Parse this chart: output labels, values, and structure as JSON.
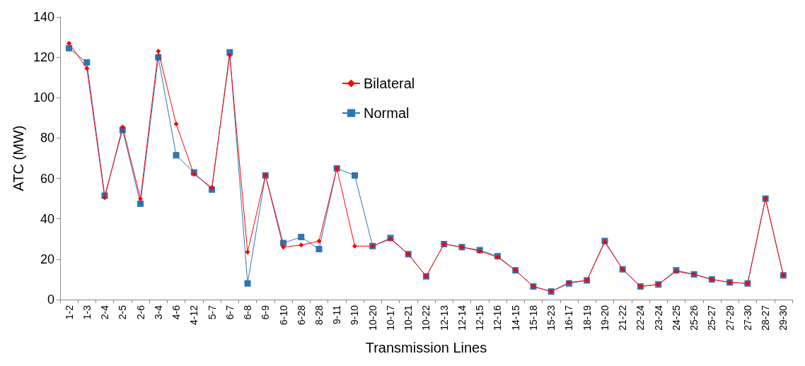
{
  "chart_data": {
    "type": "line",
    "xlabel": "Transmission Lines",
    "ylabel": "ATC (MW)",
    "categories": [
      "1-2",
      "1-3",
      "2-4",
      "2-5",
      "2-6",
      "3-4",
      "4-6",
      "4-12",
      "5-7",
      "6-7",
      "6-8",
      "6-9",
      "6-10",
      "6-28",
      "8-28",
      "9-11",
      "9-10",
      "10-20",
      "10-17",
      "10-21",
      "10-22",
      "12-13",
      "12-14",
      "12-15",
      "12-16",
      "14-15",
      "15-18",
      "15-23",
      "16-17",
      "18-19",
      "19-20",
      "21-22",
      "22-24",
      "23-24",
      "24-25",
      "25-26",
      "25-27",
      "27-29",
      "27-30",
      "28-27",
      "29-30"
    ],
    "series": [
      {
        "name": "Bilateral",
        "color": "#ff0000",
        "marker": "diamond",
        "values": [
          127,
          114.5,
          50.5,
          85.5,
          50,
          123,
          87,
          62,
          55.5,
          121,
          23.5,
          61.5,
          26,
          27,
          29,
          65,
          26.5,
          26.5,
          30,
          22.5,
          11.5,
          27.5,
          26,
          24,
          21,
          14.5,
          6.5,
          4,
          8.5,
          9.5,
          28.5,
          15,
          6.5,
          7.5,
          14,
          12.5,
          10,
          8.5,
          8,
          50,
          12
        ]
      },
      {
        "name": "Normal",
        "color": "#2e75b6",
        "marker": "square",
        "values": [
          124.5,
          117.5,
          51.5,
          84,
          47.5,
          120,
          71.5,
          63,
          54.5,
          122.5,
          8,
          61.5,
          28,
          31,
          25,
          65,
          61.5,
          26.5,
          30.5,
          22.5,
          11.5,
          27.5,
          26,
          24.5,
          21.5,
          14.5,
          6.5,
          4,
          8,
          9.5,
          29,
          15,
          6.5,
          7.5,
          14.5,
          12.5,
          10,
          8.5,
          8,
          50,
          12
        ]
      }
    ],
    "ylim": [
      0,
      140
    ],
    "yticks": [
      0,
      20,
      40,
      60,
      80,
      100,
      120,
      140
    ],
    "grid": false,
    "legend": "top"
  }
}
